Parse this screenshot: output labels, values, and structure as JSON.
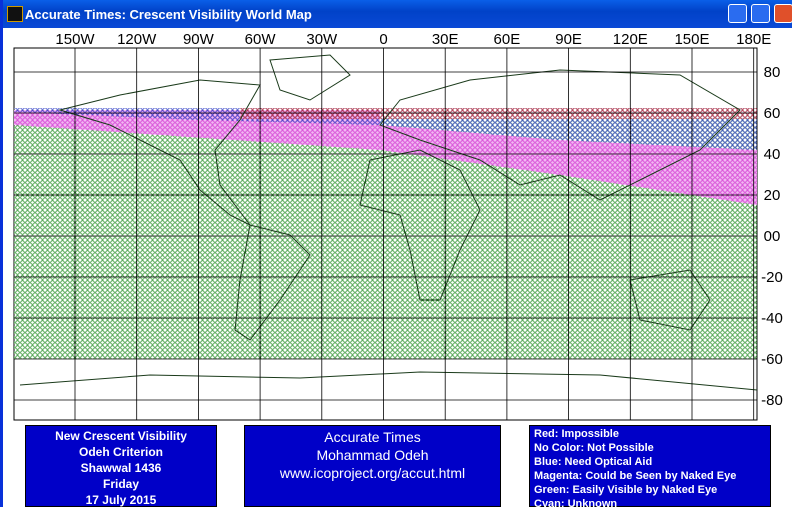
{
  "window": {
    "title": "Accurate Times: Crescent Visibility World Map"
  },
  "map": {
    "longitude_labels": [
      "150W",
      "120W",
      "90W",
      "60W",
      "30W",
      "0",
      "30E",
      "60E",
      "90E",
      "120E",
      "150E",
      "180E"
    ],
    "latitude_labels": [
      "80",
      "60",
      "40",
      "20",
      "00",
      "-20",
      "-40",
      "-60",
      "-80"
    ]
  },
  "info_left": {
    "lines": [
      "New Crescent Visibility",
      "Odeh Criterion",
      "Shawwal 1436",
      "Friday",
      "17 July 2015"
    ]
  },
  "info_center": {
    "lines": [
      "Accurate Times",
      "Mohammad Odeh",
      "www.icoproject.org/accut.html"
    ]
  },
  "legend": {
    "items": [
      "Red: Impossible",
      "No Color: Not Possible",
      "Blue: Need Optical Aid",
      "Magenta: Could be Seen by Naked Eye",
      "Green: Easily Visible by Naked Eye",
      "Cyan: Unknown"
    ]
  }
}
